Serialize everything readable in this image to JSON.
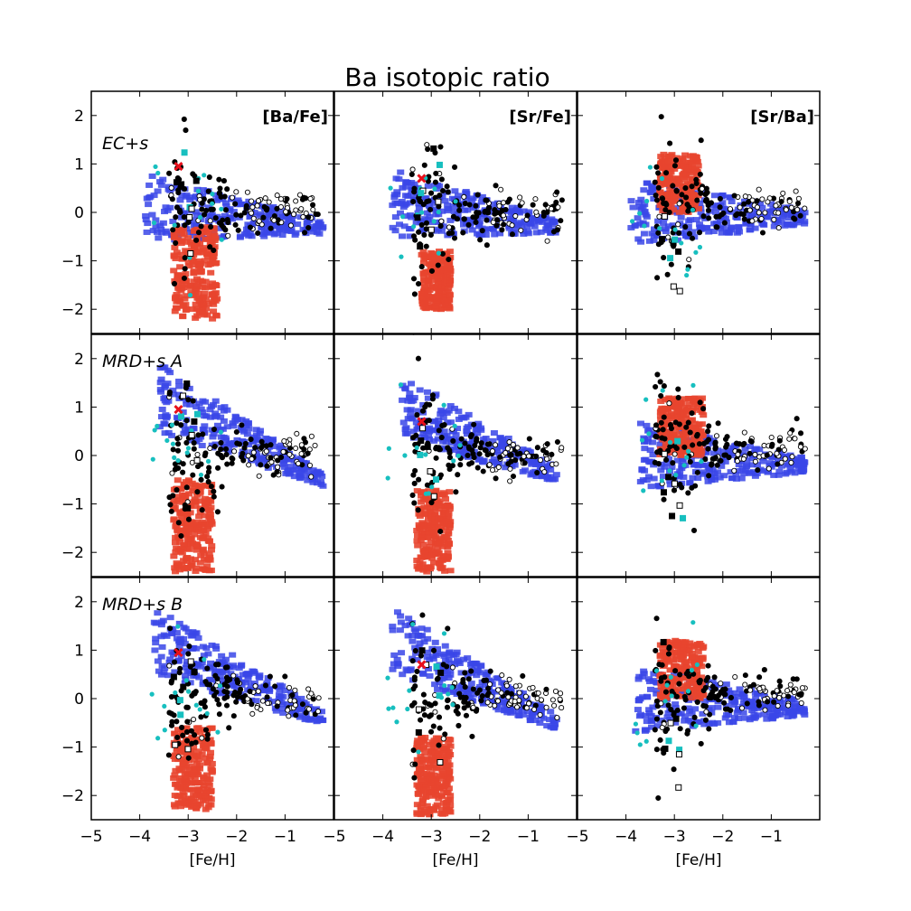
{
  "figure": {
    "title": "Ba isotopic ratio"
  },
  "colors": {
    "model_red": "#e8452f",
    "model_blue": "#3a46e8",
    "data_black": "#000000",
    "data_cyan": "#17bfbf",
    "marker_red": "#e8101c"
  },
  "chart_data": {
    "type": "scatter",
    "title": "Ba isotopic ratio",
    "grid": false,
    "layout": "3x3 panel grid",
    "rows": [
      "EC+s",
      "MRD+s A",
      "MRD+s B"
    ],
    "columns": [
      "[Ba/Fe]",
      "[Sr/Fe]",
      "[Sr/Ba]"
    ],
    "xlabel": "[Fe/H]",
    "xlim": [
      -5,
      0
    ],
    "ylim": [
      -2.5,
      2.5
    ],
    "xticks": [
      "−5",
      "−4",
      "−3",
      "−2",
      "−1"
    ],
    "yticks": [
      "−2",
      "−1",
      "0",
      "1",
      "2"
    ],
    "series_shown": [
      "model red region",
      "model blue region",
      "filled black circles",
      "open circles",
      "filled cyan circles",
      "filled black squares",
      "open black squares",
      "cyan squares",
      "red x marker"
    ],
    "red_marker": {
      "x": -3.2,
      "y": [
        0.95,
        0.7,
        null
      ]
    },
    "panels": [
      {
        "row": 0,
        "col": 0,
        "blue_core": {
          "x": [
            -3.9,
            -0.2
          ],
          "y": [
            0.1,
            -0.3
          ]
        },
        "red_core": {
          "x": [
            -3.3,
            -2.4
          ],
          "y": [
            -0.3,
            -2.2
          ]
        }
      },
      {
        "row": 0,
        "col": 1,
        "blue_core": {
          "x": [
            -3.8,
            -0.4
          ],
          "y": [
            0.2,
            -0.3
          ]
        },
        "red_core": {
          "x": [
            -3.2,
            -2.6
          ],
          "y": [
            -0.8,
            -2.0
          ]
        }
      },
      {
        "row": 0,
        "col": 2,
        "blue_core": {
          "x": [
            -3.9,
            -0.3
          ],
          "y": [
            0.0,
            -0.1
          ]
        },
        "red_core": {
          "x": [
            -3.3,
            -2.5
          ],
          "y": [
            1.2,
            0.0
          ]
        }
      },
      {
        "row": 1,
        "col": 0,
        "blue_core": {
          "x": [
            -3.6,
            -0.2
          ],
          "y": [
            1.2,
            -0.5
          ]
        },
        "red_core": {
          "x": [
            -3.3,
            -2.5
          ],
          "y": [
            -0.5,
            -2.4
          ]
        }
      },
      {
        "row": 1,
        "col": 1,
        "blue_core": {
          "x": [
            -3.6,
            -0.4
          ],
          "y": [
            1.0,
            -0.4
          ]
        },
        "red_core": {
          "x": [
            -3.3,
            -2.6
          ],
          "y": [
            -0.7,
            -2.4
          ]
        }
      },
      {
        "row": 1,
        "col": 2,
        "blue_core": {
          "x": [
            -3.7,
            -0.3
          ],
          "y": [
            0.0,
            -0.2
          ]
        },
        "red_core": {
          "x": [
            -3.3,
            -2.4
          ],
          "y": [
            1.2,
            0.0
          ]
        }
      },
      {
        "row": 2,
        "col": 0,
        "blue_core": {
          "x": [
            -3.7,
            -0.2
          ],
          "y": [
            1.2,
            -0.4
          ]
        },
        "red_core": {
          "x": [
            -3.3,
            -2.5
          ],
          "y": [
            -0.6,
            -2.3
          ]
        }
      },
      {
        "row": 2,
        "col": 1,
        "blue_core": {
          "x": [
            -3.8,
            -0.4
          ],
          "y": [
            1.2,
            -0.5
          ]
        },
        "red_core": {
          "x": [
            -3.3,
            -2.6
          ],
          "y": [
            -0.8,
            -2.4
          ]
        }
      },
      {
        "row": 2,
        "col": 2,
        "blue_core": {
          "x": [
            -3.8,
            -0.3
          ],
          "y": [
            0.0,
            -0.2
          ]
        },
        "red_core": {
          "x": [
            -3.3,
            -2.4
          ],
          "y": [
            1.2,
            0.0
          ]
        }
      }
    ]
  }
}
